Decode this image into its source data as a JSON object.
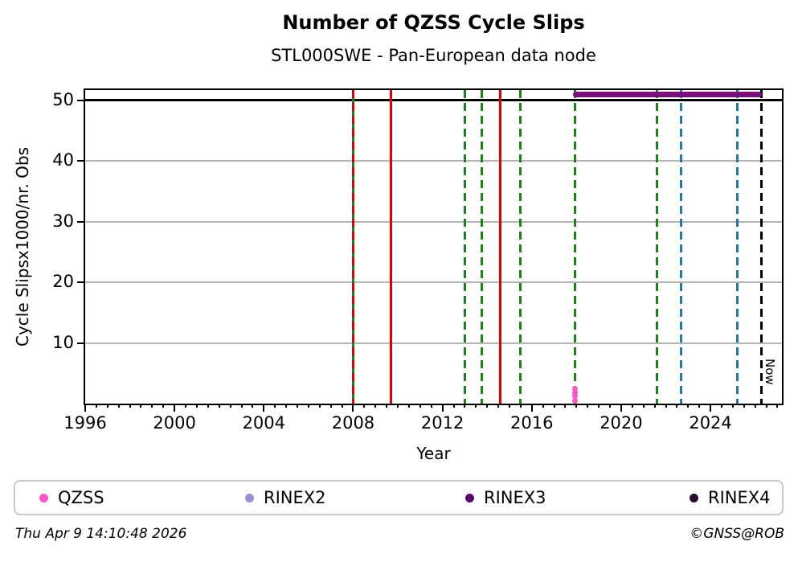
{
  "chart_data": {
    "type": "scatter",
    "title": "Number of QZSS Cycle Slips",
    "subtitle": "STL000SWE - Pan-European data node",
    "xlabel": "Year",
    "ylabel": "Cycle Slipsx1000/nr. Obs",
    "xlim": [
      1996,
      2027.2
    ],
    "ylim": [
      0,
      51.7
    ],
    "xticks": [
      1996,
      2000,
      2004,
      2008,
      2012,
      2016,
      2020,
      2024
    ],
    "x_minor_step": 0.5,
    "yticks": [
      10,
      20,
      30,
      40,
      50
    ],
    "grid": true,
    "grid_color": "#b4b4b4",
    "threshold_line": {
      "y": 50,
      "color": "#000000"
    },
    "event_lines": [
      {
        "year": 2008.0,
        "color": "#168716",
        "style": "solid"
      },
      {
        "year": 2008.0,
        "color": "#e00000",
        "style": "dashed"
      },
      {
        "year": 2009.7,
        "color": "#e00000",
        "style": "solid"
      },
      {
        "year": 2013.0,
        "color": "#168716",
        "style": "dashed"
      },
      {
        "year": 2013.75,
        "color": "#168716",
        "style": "dashed"
      },
      {
        "year": 2014.6,
        "color": "#e00000",
        "style": "solid"
      },
      {
        "year": 2015.5,
        "color": "#168716",
        "style": "dashed"
      },
      {
        "year": 2017.95,
        "color": "#168716",
        "style": "dashed"
      },
      {
        "year": 2021.6,
        "color": "#168716",
        "style": "dashed"
      },
      {
        "year": 2022.7,
        "color": "#1f77b4",
        "style": "dashed"
      },
      {
        "year": 2025.2,
        "color": "#1f77b4",
        "style": "dashed"
      },
      {
        "year": 2026.27,
        "color": "#000000",
        "style": "dashed"
      }
    ],
    "availability_bar": {
      "series": "RINEX3",
      "x_start": 2017.85,
      "x_end": 2026.3,
      "y": 51.0,
      "color": "#7c0d7c"
    },
    "points": {
      "series": "QZSS",
      "color": "#ff55c6",
      "x": 2017.95,
      "values": [
        2.4,
        1.8,
        1.2,
        0.45
      ]
    },
    "now_marker": {
      "x": 2026.27,
      "label": "Now"
    },
    "legend": [
      {
        "label": "QZSS",
        "color": "#ff55c6"
      },
      {
        "label": "RINEX2",
        "color": "#9191d4"
      },
      {
        "label": "RINEX3",
        "color": "#570a6b"
      },
      {
        "label": "RINEX4",
        "color": "#2a0e31"
      }
    ],
    "legend_position": "bottom"
  },
  "footer": {
    "timestamp": "Thu Apr  9 14:10:48 2026",
    "credit": "©GNSS@ROB"
  }
}
